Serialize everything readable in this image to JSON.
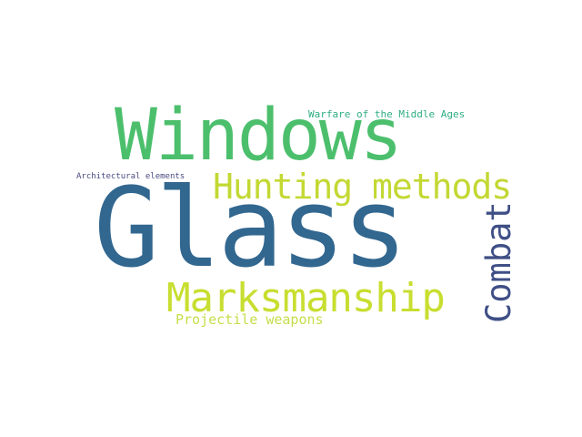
{
  "words": [
    {
      "id": "glass",
      "text": "Glass",
      "color": "#32678f"
    },
    {
      "id": "windows",
      "text": "Windows",
      "color": "#4cbf6d"
    },
    {
      "id": "hunting",
      "text": "Hunting methods",
      "color": "#c3d833"
    },
    {
      "id": "marksmanship",
      "text": "Marksmanship",
      "color": "#c8de30"
    },
    {
      "id": "combat",
      "text": "Combat",
      "color": "#3f4f86"
    },
    {
      "id": "projectile",
      "text": "Projectile weapons",
      "color": "#c6de4a"
    },
    {
      "id": "warfare",
      "text": "Warfare of the Middle Ages",
      "color": "#2fae82"
    },
    {
      "id": "architectural",
      "text": "Architectural elements",
      "color": "#4a4a82"
    }
  ]
}
